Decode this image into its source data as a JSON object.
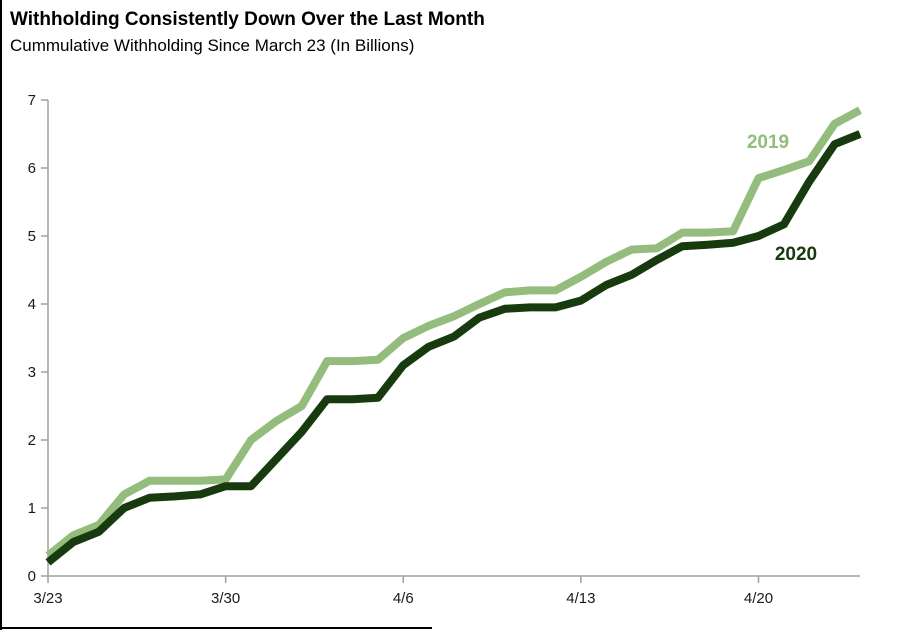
{
  "header": {
    "title": "Withholding Consistently Down Over the Last Month",
    "subtitle": "Cummulative Withholding Since March 23 (In Billions)"
  },
  "chart_data": {
    "type": "line",
    "title": "Withholding Consistently Down Over the Last Month",
    "subtitle": "Cummulative Withholding Since March 23 (In Billions)",
    "xlabel": "",
    "ylabel": "",
    "ylim": [
      0,
      7
    ],
    "yticks": [
      0,
      1,
      2,
      3,
      4,
      5,
      6,
      7
    ],
    "grid": false,
    "legend_position": "inline-end-labels",
    "axis_color": "#a0a0a0",
    "tick_label_color": "#1a1a1a",
    "x": [
      "3/23",
      "3/24",
      "3/25",
      "3/26",
      "3/27",
      "3/28",
      "3/29",
      "3/30",
      "3/31",
      "4/1",
      "4/2",
      "4/3",
      "4/4",
      "4/5",
      "4/6",
      "4/7",
      "4/8",
      "4/9",
      "4/10",
      "4/11",
      "4/12",
      "4/13",
      "4/14",
      "4/15",
      "4/16",
      "4/17",
      "4/18",
      "4/19",
      "4/20",
      "4/21",
      "4/22",
      "4/23",
      "4/24"
    ],
    "xticks": [
      {
        "index": 0,
        "label": "3/23"
      },
      {
        "index": 7,
        "label": "3/30"
      },
      {
        "index": 14,
        "label": "4/6"
      },
      {
        "index": 21,
        "label": "4/13"
      },
      {
        "index": 28,
        "label": "4/20"
      }
    ],
    "series": [
      {
        "name": "2019",
        "color": "#94bc7d",
        "values": [
          0.3,
          0.6,
          0.75,
          1.2,
          1.4,
          1.4,
          1.4,
          1.42,
          2.0,
          2.28,
          2.5,
          3.16,
          3.16,
          3.18,
          3.5,
          3.68,
          3.82,
          4.0,
          4.17,
          4.2,
          4.2,
          4.4,
          4.62,
          4.8,
          4.82,
          5.05,
          5.05,
          5.07,
          5.85,
          5.97,
          6.1,
          6.65,
          6.85
        ]
      },
      {
        "name": "2020",
        "color": "#173b0e",
        "values": [
          0.2,
          0.5,
          0.65,
          1.0,
          1.15,
          1.17,
          1.2,
          1.32,
          1.32,
          1.72,
          2.12,
          2.6,
          2.6,
          2.62,
          3.1,
          3.37,
          3.52,
          3.8,
          3.93,
          3.95,
          3.95,
          4.05,
          4.28,
          4.43,
          4.65,
          4.85,
          4.87,
          4.9,
          5.0,
          5.17,
          5.8,
          6.35,
          6.5
        ]
      }
    ]
  }
}
